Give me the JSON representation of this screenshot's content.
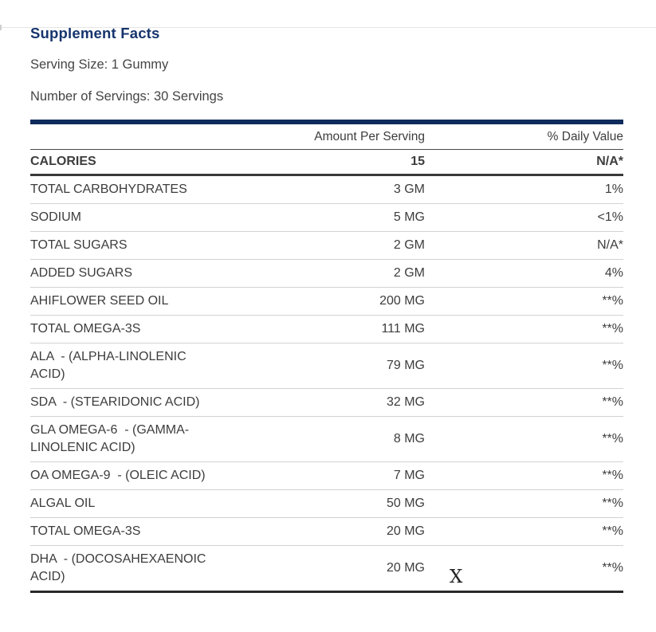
{
  "page": {
    "title": "Supplement Facts",
    "serving_size": "Serving Size: 1 Gummy",
    "number_of_servings": "Number of Servings: 30 Servings"
  },
  "table": {
    "header": {
      "amount": "Amount Per Serving",
      "daily_value": "% Daily Value"
    },
    "rows": [
      {
        "label": "CALORIES",
        "amount": "15",
        "daily_value": "N/A*",
        "bold": true
      },
      {
        "label": "TOTAL CARBOHYDRATES",
        "amount": "3 GM",
        "daily_value": "1%"
      },
      {
        "label": "SODIUM",
        "amount": "5 MG",
        "daily_value": "<1%"
      },
      {
        "label": "TOTAL SUGARS",
        "amount": "2 GM",
        "daily_value": "N/A*"
      },
      {
        "label": "ADDED SUGARS",
        "amount": "2 GM",
        "daily_value": "4%"
      },
      {
        "label": "AHIFLOWER SEED OIL",
        "amount": "200 MG",
        "daily_value": "**%"
      },
      {
        "label": "TOTAL OMEGA-3S",
        "amount": "111 MG",
        "daily_value": "**%"
      },
      {
        "label": "ALA  - (ALPHA-LINOLENIC ACID)",
        "amount": "79 MG",
        "daily_value": "**%"
      },
      {
        "label": "SDA  - (STEARIDONIC ACID)",
        "amount": "32 MG",
        "daily_value": "**%"
      },
      {
        "label": "GLA OMEGA-6  - (GAMMA-LINOLENIC ACID)",
        "amount": "8 MG",
        "daily_value": "**%"
      },
      {
        "label": "OA OMEGA-9  - (OLEIC ACID)",
        "amount": "7 MG",
        "daily_value": "**%"
      },
      {
        "label": "ALGAL OIL",
        "amount": "50 MG",
        "daily_value": "**%"
      },
      {
        "label": "TOTAL OMEGA-3S",
        "amount": "20 MG",
        "daily_value": "**%"
      },
      {
        "label": "DHA  - (DOCOSAHEXAENOIC ACID)",
        "amount": "20 MG",
        "daily_value": "**%"
      }
    ]
  },
  "artifact": {
    "x_mark": "X"
  },
  "colors": {
    "heading_navy": "#16356d",
    "top_bar_navy": "#0e2b5c",
    "body_text": "#3d3d3d",
    "row_divider": "#d2d2d2",
    "header_divider": "#4a4a4a",
    "calories_divider": "#3a3a3a",
    "bottom_bar": "#282828"
  }
}
